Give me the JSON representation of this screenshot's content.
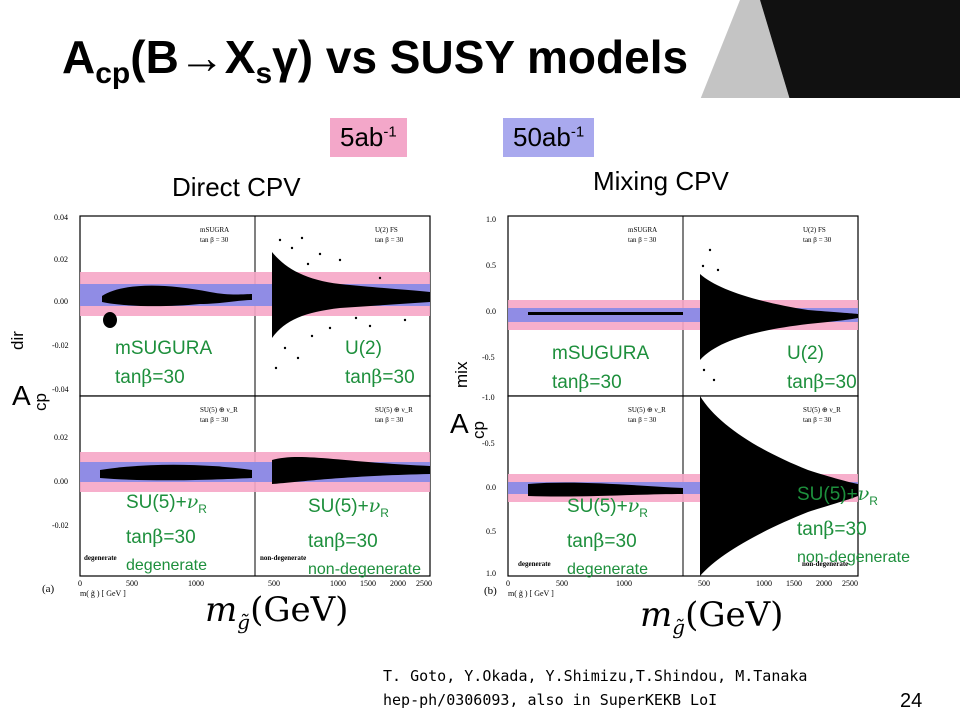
{
  "slide": {
    "title": {
      "main": "A",
      "sub1": "cp",
      "open": "(B",
      "arrow": "→",
      "x": "X",
      "sub2": "s",
      "gamma": "γ",
      "rest": ") vs SUSY models"
    },
    "page_number": "24",
    "colors": {
      "band_pink": "#f6a6c6",
      "band_purple": "#8a8ae6",
      "badge_pink": "#f3a7c9",
      "badge_blue": "#a9a9ee",
      "text_green": "#1d8f3c"
    }
  },
  "badges": [
    {
      "text": "5ab",
      "sup": "-1"
    },
    {
      "text": "50ab",
      "sup": "-1"
    }
  ],
  "panels": [
    {
      "label": "Direct CPV"
    },
    {
      "label": "Mixing CPV"
    }
  ],
  "ylabels": [
    {
      "main": "A",
      "sub": "cp",
      "sup": "dir"
    },
    {
      "main": "A",
      "sub": "cp",
      "sup": "mix"
    }
  ],
  "models": [
    {
      "line1": "mSUGURA",
      "line2a": "tan",
      "beta": "β",
      "line2b": "=30"
    },
    {
      "line1": "U(2)",
      "line2a": "tan",
      "beta": "β",
      "line2b": "=30"
    },
    {
      "line1a": "SU(5)+",
      "nu": "ν",
      "nusub": "R",
      "line2a": "tan",
      "beta": "β",
      "line2b": "=30",
      "line3": "degenerate"
    },
    {
      "line1a": "SU(5)+",
      "nu": "ν",
      "nusub": "R",
      "line2a": "tan",
      "beta": "β",
      "line2b": "=30",
      "line3": "non-degenerate"
    },
    {
      "line1": "mSUGURA",
      "line2a": "tan",
      "beta": "β",
      "line2b": "=30"
    },
    {
      "line1": "U(2)",
      "line2a": "tan",
      "beta": "β",
      "line2b": "=30"
    },
    {
      "line1a": "SU(5)+",
      "nu": "ν",
      "nusub": "R",
      "line2a": "tan",
      "beta": "β",
      "line2b": "=30",
      "line3": "degenerate"
    },
    {
      "line1a": "SU(5)+",
      "nu": "ν",
      "nusub": "R",
      "line2a": "tan",
      "beta": "β",
      "line2b": "=30",
      "line3": "non-degenerate"
    }
  ],
  "xaxis_formula": {
    "m": "m",
    "sub": "g̃",
    "rest": "(GeV)"
  },
  "reference": {
    "line1": "T. Goto, Y.Okada, Y.Shimizu,T.Shindou, M.Tanaka",
    "line2": "hep-ph/0306093, also in SuperKEKB LoI"
  },
  "figure_text": {
    "left": {
      "label": "(a)",
      "xaxis": "m( g̃ )  [ GeV ]",
      "yticks_top": [
        "0.04",
        "0.02",
        "0.00",
        "-0.02",
        "-0.04"
      ],
      "yticks_bottom": [
        "0.02",
        "0.00",
        "-0.02"
      ],
      "xticks": [
        "500",
        "1000",
        "1500",
        "2000",
        "2500"
      ],
      "x0tick": "0",
      "panel_tags": [
        {
          "l1": "mSUGRA",
          "l2": "tan β = 30"
        },
        {
          "l1": "U(2) FS",
          "l2": "tan β = 30"
        },
        {
          "l1": "SU(5) ⊕ ν_R",
          "l2": "tan β = 30"
        },
        {
          "l1": "SU(5) ⊕ ν_R",
          "l2": "tan β = 30"
        }
      ],
      "corner_tags": [
        "degenerate",
        "non-degenerate"
      ]
    },
    "right": {
      "label": "(b)",
      "xaxis": "m( g̃ )  [ GeV ]",
      "yticks_top": [
        "1.0",
        "0.5",
        "0.0",
        "-0.5"
      ],
      "yticks_bottom": [
        "-1.0",
        "-0.5",
        "0.0",
        "0.5",
        "1.0"
      ],
      "xticks": [
        "500",
        "1000",
        "1500",
        "2000",
        "2500"
      ],
      "x0tick": "0",
      "panel_tags": [
        {
          "l1": "mSUGRA",
          "l2": "tan β = 30"
        },
        {
          "l1": "U(2) FS",
          "l2": "tan β = 30"
        },
        {
          "l1": "SU(5) ⊕ ν_R",
          "l2": "tan β = 30"
        },
        {
          "l1": "SU(5) ⊕ ν_R",
          "l2": "tan β = 30"
        }
      ],
      "corner_tags": [
        "degenerate",
        "non-degenerate"
      ]
    }
  }
}
